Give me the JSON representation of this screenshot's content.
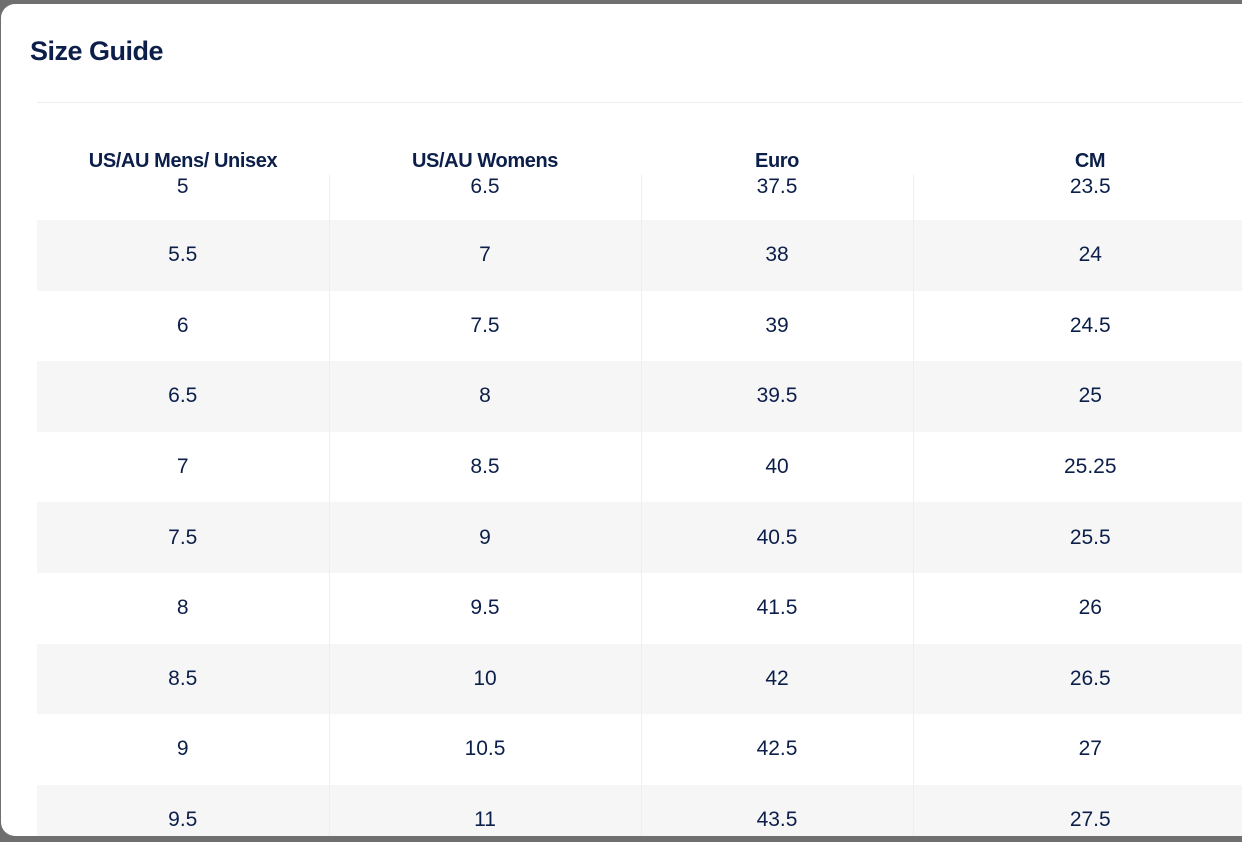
{
  "modal": {
    "title": "Size Guide"
  },
  "table": {
    "headers": [
      "US/AU Mens/ Unisex",
      "US/AU Womens",
      "Euro",
      "CM"
    ],
    "rows": [
      [
        "5",
        "6.5",
        "37.5",
        "23.5"
      ],
      [
        "5.5",
        "7",
        "38",
        "24"
      ],
      [
        "6",
        "7.5",
        "39",
        "24.5"
      ],
      [
        "6.5",
        "8",
        "39.5",
        "25"
      ],
      [
        "7",
        "8.5",
        "40",
        "25.25"
      ],
      [
        "7.5",
        "9",
        "40.5",
        "25.5"
      ],
      [
        "8",
        "9.5",
        "41.5",
        "26"
      ],
      [
        "8.5",
        "10",
        "42",
        "26.5"
      ],
      [
        "9",
        "10.5",
        "42.5",
        "27"
      ],
      [
        "9.5",
        "11",
        "43.5",
        "27.5"
      ]
    ]
  },
  "colors": {
    "text": "#0c1f4a",
    "stripe": "#f6f6f6",
    "overlay": "#6f6f6f"
  }
}
